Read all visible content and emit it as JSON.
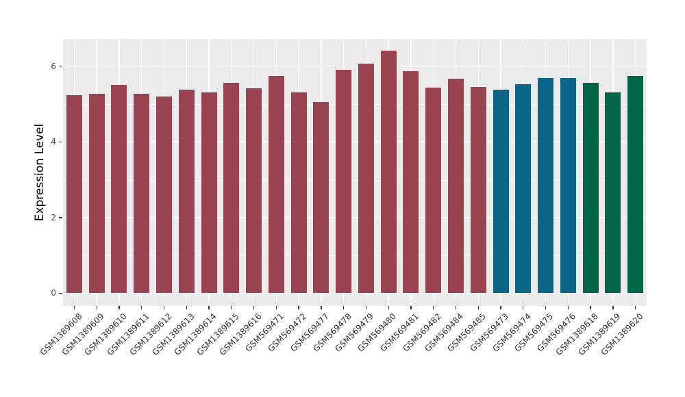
{
  "chart_data": {
    "type": "bar",
    "title": "",
    "xlabel": "",
    "ylabel": "Expression Level",
    "ylim": [
      0,
      6.7
    ],
    "yticks": [
      0,
      2,
      4,
      6
    ],
    "yticks_minor": [
      1,
      3,
      5
    ],
    "grid": true,
    "legend_position": "none",
    "panel_bg": "#EBEBEB",
    "grid_color": "#FFFFFF",
    "tick_color": "#333333",
    "categories": [
      "GSM1389608",
      "GSM1389609",
      "GSM1389610",
      "GSM1389611",
      "GSM1389612",
      "GSM1389613",
      "GSM1389614",
      "GSM1389615",
      "GSM1389616",
      "GSM569471",
      "GSM569472",
      "GSM569477",
      "GSM569478",
      "GSM569479",
      "GSM569480",
      "GSM569481",
      "GSM569482",
      "GSM569484",
      "GSM569485",
      "GSM569473",
      "GSM569474",
      "GSM569475",
      "GSM569476",
      "GSM1389618",
      "GSM1389619",
      "GSM1389620"
    ],
    "values": [
      5.23,
      5.27,
      5.5,
      5.26,
      5.19,
      5.38,
      5.3,
      5.55,
      5.42,
      5.74,
      5.3,
      5.06,
      5.9,
      6.06,
      6.4,
      5.87,
      5.44,
      5.67,
      5.45,
      5.38,
      5.53,
      5.69,
      5.68,
      5.55,
      5.3,
      5.73
    ],
    "palette": {
      "maroon": "#9A4351",
      "teal": "#0C6688",
      "green": "#006648"
    },
    "bar_groups": [
      "maroon",
      "maroon",
      "maroon",
      "maroon",
      "maroon",
      "maroon",
      "maroon",
      "maroon",
      "maroon",
      "maroon",
      "maroon",
      "maroon",
      "maroon",
      "maroon",
      "maroon",
      "maroon",
      "maroon",
      "maroon",
      "maroon",
      "teal",
      "teal",
      "teal",
      "teal",
      "green",
      "green",
      "green"
    ]
  }
}
